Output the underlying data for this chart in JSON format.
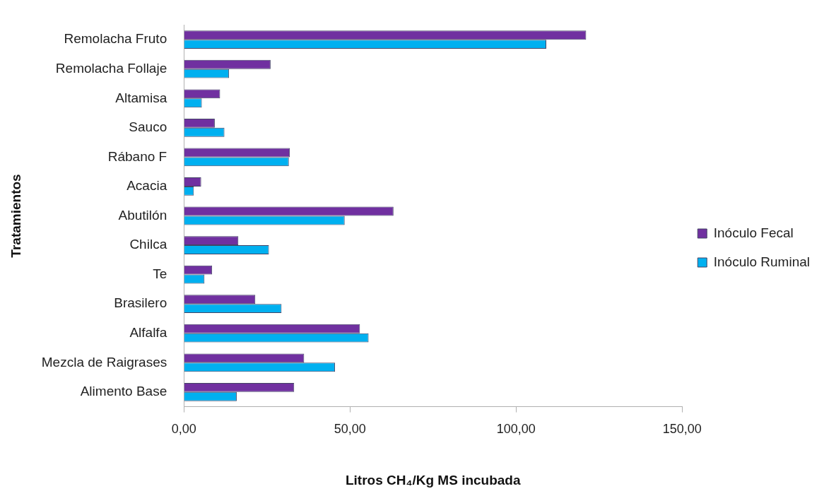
{
  "chart_data": {
    "type": "bar",
    "orientation": "horizontal",
    "xlabel": "Litros CH₄/Kg MS incubada",
    "ylabel": "Tratamientos",
    "categories": [
      "Remolacha Fruto",
      "Remolacha Follaje",
      "Altamisa",
      "Sauco",
      "Rábano F",
      "Acacia",
      "Abutilón",
      "Chilca",
      "Te",
      "Brasilero",
      "Alfalfa",
      "Mezcla de Raigrases",
      "Alimento Base"
    ],
    "series": [
      {
        "name": "Inóculo Fecal",
        "color": "#7030a0",
        "values": [
          121.1,
          26.1,
          10.9,
          9.3,
          31.9,
          5.2,
          63.1,
          16.4,
          8.5,
          21.5,
          53.0,
          36.2,
          33.2
        ]
      },
      {
        "name": "Inóculo Ruminal",
        "color": "#00b0f0",
        "values": [
          109.1,
          13.6,
          5.4,
          12.2,
          31.6,
          3.0,
          48.4,
          25.6,
          6.2,
          29.4,
          55.6,
          45.5,
          15.9
        ]
      }
    ],
    "xlim": [
      0,
      150
    ],
    "xticks": [
      {
        "value": 0,
        "label": "0,00"
      },
      {
        "value": 50,
        "label": "50,00"
      },
      {
        "value": 100,
        "label": "100,00"
      },
      {
        "value": 150,
        "label": "150,00"
      }
    ],
    "grid": false,
    "legend": "right"
  }
}
